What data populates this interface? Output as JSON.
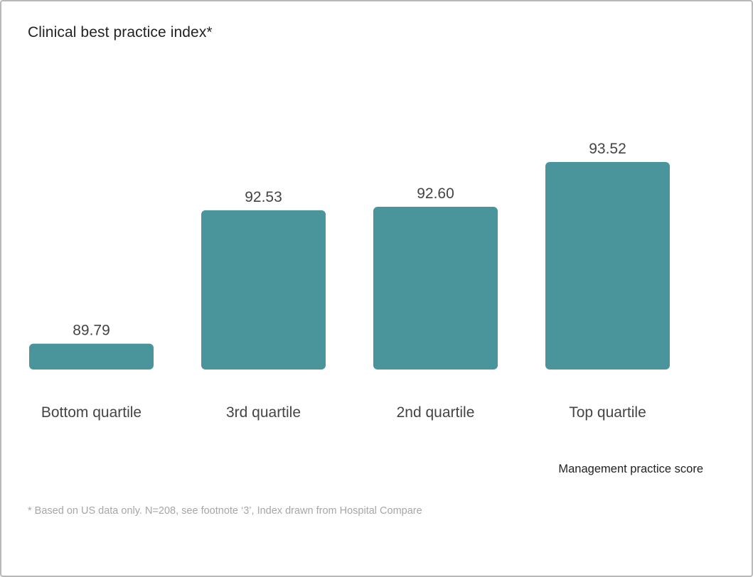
{
  "chart_data": {
    "type": "bar",
    "title": "Clinical best practice index*",
    "categories": [
      "Bottom quartile",
      "3rd quartile",
      "2nd quartile",
      "Top quartile"
    ],
    "values": [
      89.79,
      92.53,
      92.6,
      93.52
    ],
    "value_labels": [
      "89.79",
      "92.53",
      "92.60",
      "93.52"
    ],
    "xlabel": "Management practice score",
    "ylabel": "",
    "ylim": [
      89.26,
      93.52
    ],
    "grid": false,
    "bar_color": "#4a959c",
    "footnote": "* Based on US data only. N=208, see footnote ‘3’, Index drawn from Hospital Compare"
  }
}
